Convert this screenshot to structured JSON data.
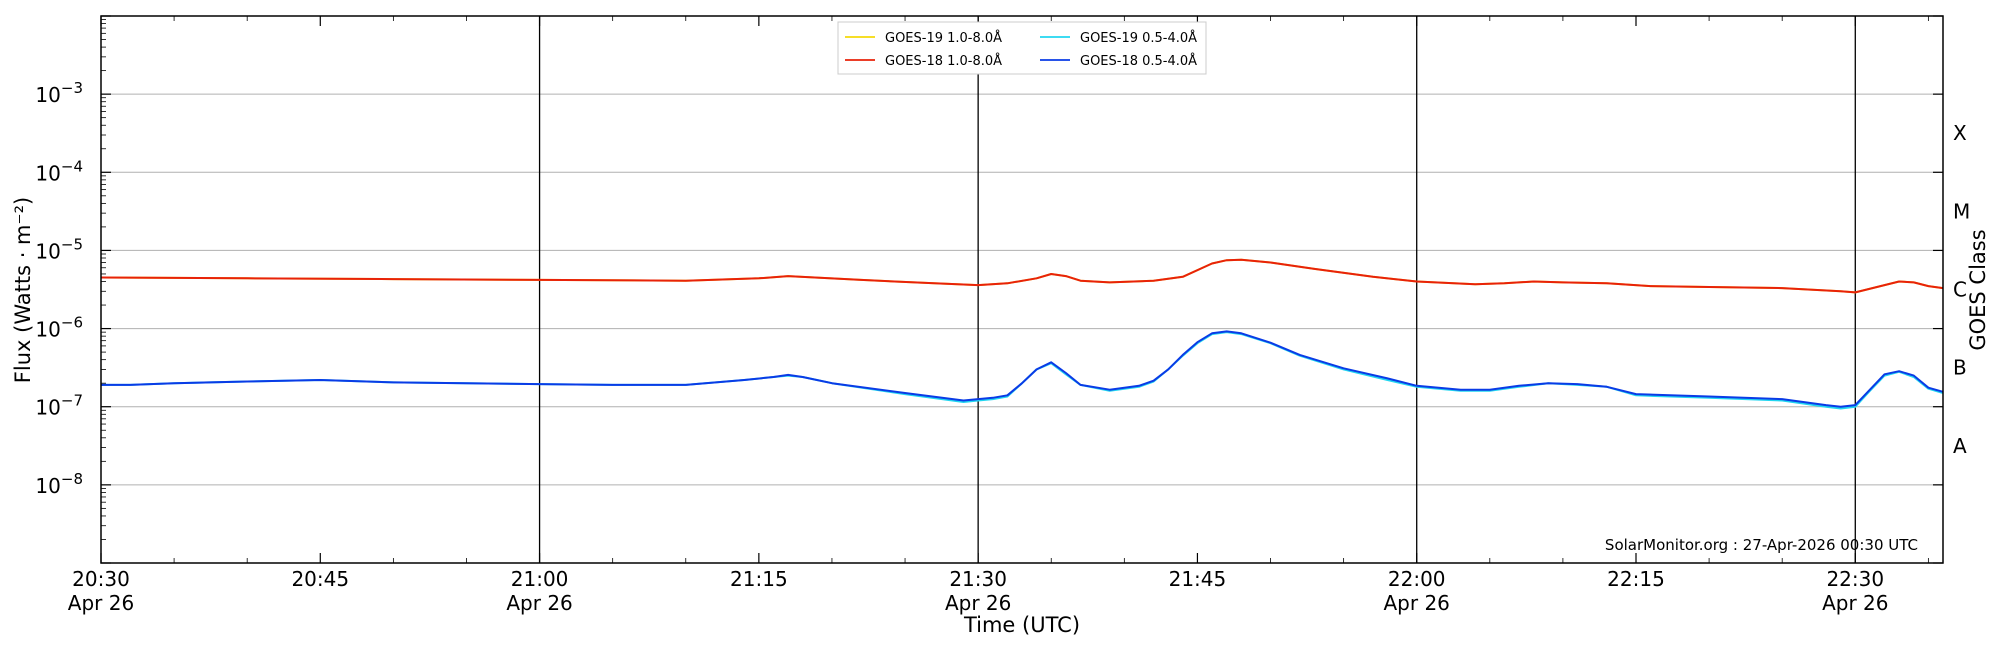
{
  "chart_data": {
    "type": "line",
    "xlabel": "Time (UTC)",
    "ylabel": "Flux (Watts · m⁻²)",
    "ylabel_right": "GOES Class",
    "y_scale": "log",
    "ylim": [
      1e-09,
      0.01
    ],
    "xlim": [
      "2026-04-26 20:30",
      "2026-04-26 22:36"
    ],
    "grid": "horizontal",
    "legend_position": "top-center",
    "credit": "SolarMonitor.org : 27-Apr-2026 00:30 UTC",
    "x_ticks": [
      {
        "time": "20:30",
        "date": "Apr 26"
      },
      {
        "time": "20:45",
        "date": ""
      },
      {
        "time": "21:00",
        "date": "Apr 26"
      },
      {
        "time": "21:15",
        "date": ""
      },
      {
        "time": "21:30",
        "date": "Apr 26"
      },
      {
        "time": "21:45",
        "date": ""
      },
      {
        "time": "22:00",
        "date": "Apr 26"
      },
      {
        "time": "22:15",
        "date": ""
      },
      {
        "time": "22:30",
        "date": "Apr 26"
      }
    ],
    "vertical_lines": [
      "21:00",
      "21:30",
      "22:00",
      "22:30"
    ],
    "y_ticks": [
      {
        "value": 1e-08,
        "label_base": "10",
        "label_exp": "−8"
      },
      {
        "value": 1e-07,
        "label_base": "10",
        "label_exp": "−7"
      },
      {
        "value": 1e-06,
        "label_base": "10",
        "label_exp": "−6"
      },
      {
        "value": 1e-05,
        "label_base": "10",
        "label_exp": "−5"
      },
      {
        "value": 0.0001,
        "label_base": "10",
        "label_exp": "−4"
      },
      {
        "value": 0.001,
        "label_base": "10",
        "label_exp": "−3"
      }
    ],
    "goes_classes": [
      {
        "label": "A",
        "value": 3.16e-08
      },
      {
        "label": "B",
        "value": 3.16e-07
      },
      {
        "label": "C",
        "value": 3.16e-06
      },
      {
        "label": "M",
        "value": 3.16e-05
      },
      {
        "label": "X",
        "value": 0.000316
      }
    ],
    "series": [
      {
        "name": "GOES-19 1.0-8.0Å",
        "color": "#f5d90a",
        "x": [
          "20:30",
          "20:40",
          "20:50",
          "21:00",
          "21:10",
          "21:15",
          "21:17",
          "21:22",
          "21:27",
          "21:30",
          "21:32",
          "21:34",
          "21:35",
          "21:36",
          "21:37",
          "21:39",
          "21:42",
          "21:44",
          "21:46",
          "21:47",
          "21:48",
          "21:50",
          "21:53",
          "21:57",
          "22:00",
          "22:04",
          "22:06",
          "22:08",
          "22:10",
          "22:13",
          "22:16",
          "22:20",
          "22:25",
          "22:29",
          "22:30",
          "22:32",
          "22:33",
          "22:34",
          "22:35",
          "22:36"
        ],
        "values": [
          4.5e-06,
          4.4e-06,
          4.3e-06,
          4.2e-06,
          4.1e-06,
          4.4e-06,
          4.7e-06,
          4.2e-06,
          3.8e-06,
          3.6e-06,
          3.8e-06,
          4.4e-06,
          5e-06,
          4.7e-06,
          4.1e-06,
          3.9e-06,
          4.1e-06,
          4.6e-06,
          6.8e-06,
          7.5e-06,
          7.6e-06,
          7e-06,
          5.8e-06,
          4.6e-06,
          4e-06,
          3.7e-06,
          3.8e-06,
          4e-06,
          3.9e-06,
          3.8e-06,
          3.5e-06,
          3.4e-06,
          3.3e-06,
          3e-06,
          2.9e-06,
          3.6e-06,
          4e-06,
          3.9e-06,
          3.5e-06,
          3.3e-06
        ]
      },
      {
        "name": "GOES-18 1.0-8.0Å",
        "color": "#e8220a",
        "x": [
          "20:30",
          "20:40",
          "20:50",
          "21:00",
          "21:10",
          "21:15",
          "21:17",
          "21:22",
          "21:27",
          "21:30",
          "21:32",
          "21:34",
          "21:35",
          "21:36",
          "21:37",
          "21:39",
          "21:42",
          "21:44",
          "21:46",
          "21:47",
          "21:48",
          "21:50",
          "21:53",
          "21:57",
          "22:00",
          "22:04",
          "22:06",
          "22:08",
          "22:10",
          "22:13",
          "22:16",
          "22:20",
          "22:25",
          "22:29",
          "22:30",
          "22:32",
          "22:33",
          "22:34",
          "22:35",
          "22:36"
        ],
        "values": [
          4.5e-06,
          4.4e-06,
          4.3e-06,
          4.2e-06,
          4.1e-06,
          4.4e-06,
          4.7e-06,
          4.2e-06,
          3.8e-06,
          3.6e-06,
          3.8e-06,
          4.4e-06,
          5e-06,
          4.7e-06,
          4.1e-06,
          3.9e-06,
          4.1e-06,
          4.6e-06,
          6.8e-06,
          7.5e-06,
          7.6e-06,
          7e-06,
          5.8e-06,
          4.6e-06,
          4e-06,
          3.7e-06,
          3.8e-06,
          4e-06,
          3.9e-06,
          3.8e-06,
          3.5e-06,
          3.4e-06,
          3.3e-06,
          3e-06,
          2.9e-06,
          3.6e-06,
          4e-06,
          3.9e-06,
          3.5e-06,
          3.3e-06
        ]
      },
      {
        "name": "GOES-19 0.5-4.0Å",
        "color": "#22d6f0",
        "x": [
          "20:30",
          "20:32",
          "20:35",
          "20:40",
          "20:45",
          "20:50",
          "20:55",
          "21:00",
          "21:05",
          "21:10",
          "21:14",
          "21:16",
          "21:17",
          "21:18",
          "21:20",
          "21:25",
          "21:29",
          "21:30",
          "21:31",
          "21:32",
          "21:33",
          "21:34",
          "21:35",
          "21:36",
          "21:37",
          "21:39",
          "21:41",
          "21:42",
          "21:43",
          "21:44",
          "21:45",
          "21:46",
          "21:47",
          "21:48",
          "21:50",
          "21:52",
          "21:55",
          "21:58",
          "22:00",
          "22:03",
          "22:05",
          "22:07",
          "22:09",
          "22:11",
          "22:13",
          "22:15",
          "22:20",
          "22:25",
          "22:28",
          "22:29",
          "22:30",
          "22:31",
          "22:32",
          "22:33",
          "22:34",
          "22:35",
          "22:36"
        ],
        "values": [
          1.9e-07,
          1.9e-07,
          2e-07,
          2.1e-07,
          2.2e-07,
          2.05e-07,
          2e-07,
          1.95e-07,
          1.9e-07,
          1.9e-07,
          2.2e-07,
          2.4e-07,
          2.5e-07,
          2.4e-07,
          2e-07,
          1.45e-07,
          1.15e-07,
          1.2e-07,
          1.25e-07,
          1.35e-07,
          2e-07,
          3e-07,
          3.6e-07,
          2.6e-07,
          1.9e-07,
          1.6e-07,
          1.8e-07,
          2.1e-07,
          3e-07,
          4.5e-07,
          6.5e-07,
          8.5e-07,
          9e-07,
          8.5e-07,
          6.5e-07,
          4.5e-07,
          3e-07,
          2.2e-07,
          1.8e-07,
          1.6e-07,
          1.6e-07,
          1.8e-07,
          2e-07,
          1.9e-07,
          1.8e-07,
          1.4e-07,
          1.3e-07,
          1.2e-07,
          1e-07,
          9.5e-08,
          1e-07,
          1.6e-07,
          2.5e-07,
          2.8e-07,
          2.4e-07,
          1.7e-07,
          1.5e-07
        ]
      },
      {
        "name": "GOES-18 0.5-4.0Å",
        "color": "#0a3be6",
        "x": [
          "20:30",
          "20:32",
          "20:35",
          "20:40",
          "20:45",
          "20:50",
          "20:55",
          "21:00",
          "21:05",
          "21:10",
          "21:14",
          "21:16",
          "21:17",
          "21:18",
          "21:20",
          "21:25",
          "21:29",
          "21:30",
          "21:31",
          "21:32",
          "21:33",
          "21:34",
          "21:35",
          "21:36",
          "21:37",
          "21:39",
          "21:41",
          "21:42",
          "21:43",
          "21:44",
          "21:45",
          "21:46",
          "21:47",
          "21:48",
          "21:50",
          "21:52",
          "21:55",
          "21:58",
          "22:00",
          "22:03",
          "22:05",
          "22:07",
          "22:09",
          "22:11",
          "22:13",
          "22:15",
          "22:20",
          "22:25",
          "22:28",
          "22:29",
          "22:30",
          "22:31",
          "22:32",
          "22:33",
          "22:34",
          "22:35",
          "22:36"
        ],
        "values": [
          1.9e-07,
          1.9e-07,
          2e-07,
          2.1e-07,
          2.2e-07,
          2.05e-07,
          2e-07,
          1.95e-07,
          1.9e-07,
          1.9e-07,
          2.2e-07,
          2.4e-07,
          2.55e-07,
          2.4e-07,
          2e-07,
          1.5e-07,
          1.2e-07,
          1.25e-07,
          1.3e-07,
          1.4e-07,
          2e-07,
          3e-07,
          3.7e-07,
          2.7e-07,
          1.9e-07,
          1.65e-07,
          1.85e-07,
          2.15e-07,
          3e-07,
          4.6e-07,
          6.7e-07,
          8.7e-07,
          9.2e-07,
          8.7e-07,
          6.6e-07,
          4.6e-07,
          3.1e-07,
          2.3e-07,
          1.85e-07,
          1.65e-07,
          1.65e-07,
          1.85e-07,
          2e-07,
          1.95e-07,
          1.8e-07,
          1.45e-07,
          1.35e-07,
          1.25e-07,
          1.05e-07,
          1e-07,
          1.05e-07,
          1.65e-07,
          2.6e-07,
          2.85e-07,
          2.5e-07,
          1.75e-07,
          1.55e-07
        ]
      }
    ]
  }
}
